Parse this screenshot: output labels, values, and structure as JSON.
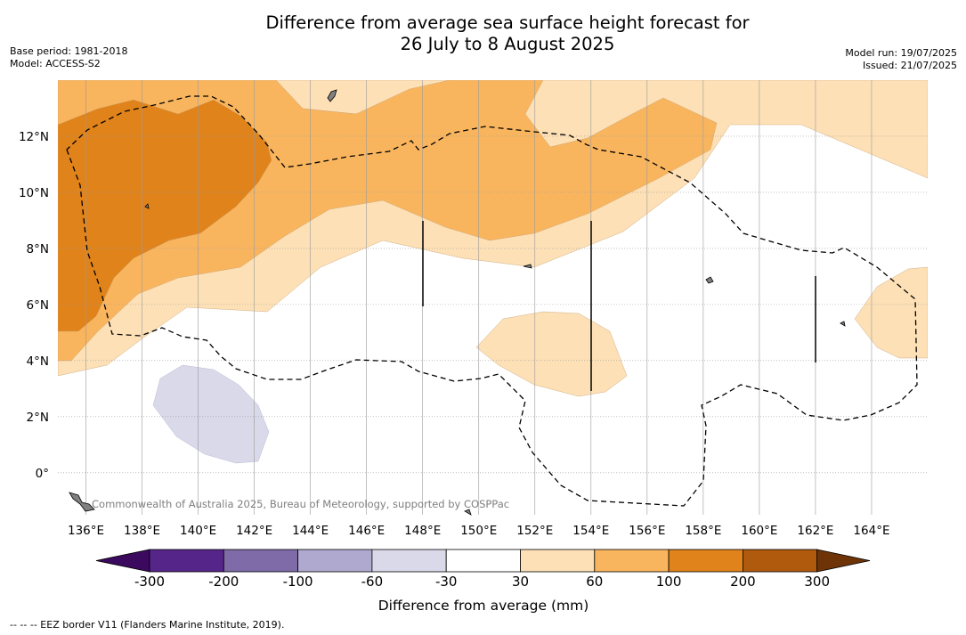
{
  "title_line1": "Difference from average sea surface height forecast for",
  "title_line2": "26 July to 8 August 2025",
  "meta_left": [
    "Base period: 1981-2018",
    "Model: ACCESS-S2"
  ],
  "meta_right": [
    "Model run: 19/07/2025",
    "Issued: 21/07/2025"
  ],
  "watermark": "Commonwealth of Australia 2025, Bureau of Meteorology, supported by COSPPac",
  "map_extent": {
    "lon": [
      135,
      166
    ],
    "lat": [
      -1.5,
      14
    ]
  },
  "lon_ticks": [
    "136°E",
    "138°E",
    "140°E",
    "142°E",
    "144°E",
    "146°E",
    "148°E",
    "150°E",
    "152°E",
    "154°E",
    "156°E",
    "158°E",
    "160°E",
    "162°E",
    "164°E"
  ],
  "lat_ticks": [
    "0°",
    "2°N",
    "4°N",
    "6°N",
    "8°N",
    "10°N",
    "12°N"
  ],
  "colorbar": {
    "label": "Difference from average (mm)",
    "ticks": [
      "-300",
      "-200",
      "-100",
      "-60",
      "-30",
      "30",
      "60",
      "100",
      "200",
      "300"
    ],
    "colors": [
      "#3b0a5e",
      "#56258a",
      "#7e6ba8",
      "#afa9cf",
      "#d9d9ea",
      "#ffffff",
      "#fde0b6",
      "#f9b55e",
      "#e0831b",
      "#b05a0d",
      "#6e3408"
    ]
  },
  "footnote": "-- -- -- EEZ border V11 (Flanders Marine Institute, 2019)."
}
